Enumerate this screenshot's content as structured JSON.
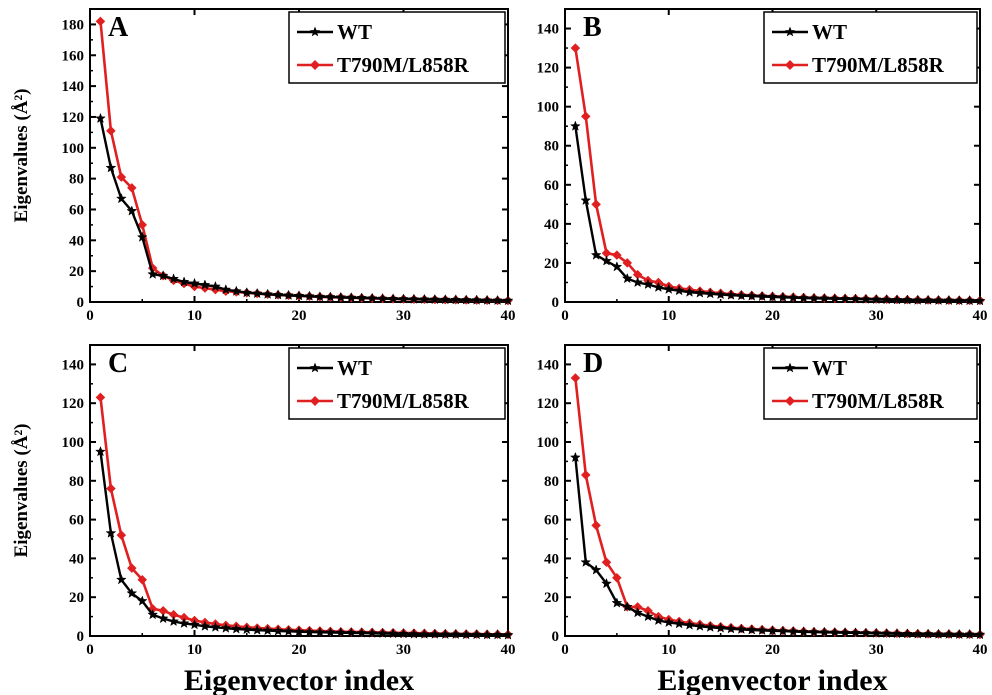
{
  "chart_data": [
    {
      "type": "line",
      "panel_label": "A",
      "xlim": [
        0,
        40
      ],
      "ylim": [
        0,
        190
      ],
      "xticks": [
        0,
        10,
        20,
        30,
        40
      ],
      "yticks": [
        0,
        20,
        40,
        60,
        80,
        100,
        120,
        140,
        160,
        180
      ],
      "ylabel": "Eigenvalues (Å²)",
      "xlabel": "",
      "legend_position": "top-right",
      "series": [
        {
          "name": "WT",
          "color": "#000000",
          "marker": "star",
          "x": [
            1,
            2,
            3,
            4,
            5,
            6,
            7,
            8,
            9,
            10,
            11,
            12,
            13,
            14,
            15,
            16,
            17,
            18,
            19,
            20,
            21,
            22,
            23,
            24,
            25,
            26,
            27,
            28,
            29,
            30,
            31,
            32,
            33,
            34,
            35,
            36,
            37,
            38,
            39,
            40
          ],
          "y": [
            119,
            87,
            67,
            59,
            42,
            18,
            17,
            15,
            13,
            12,
            11,
            10,
            8,
            7,
            6,
            5.5,
            5,
            4.6,
            4.3,
            4,
            3.7,
            3.4,
            3.2,
            3,
            2.8,
            2.6,
            2.4,
            2.2,
            2,
            1.9,
            1.8,
            1.7,
            1.6,
            1.5,
            1.4,
            1.3,
            1.2,
            1.1,
            1,
            0.9
          ]
        },
        {
          "name": "T790M/L858R",
          "color": "#e02020",
          "marker": "diamond",
          "x": [
            1,
            2,
            3,
            4,
            5,
            6,
            7,
            8,
            9,
            10,
            11,
            12,
            13,
            14,
            15,
            16,
            17,
            18,
            19,
            20,
            21,
            22,
            23,
            24,
            25,
            26,
            27,
            28,
            29,
            30,
            31,
            32,
            33,
            34,
            35,
            36,
            37,
            38,
            39,
            40
          ],
          "y": [
            182,
            111,
            81,
            74,
            50,
            22,
            17,
            14,
            12,
            10,
            9,
            8,
            7,
            6.5,
            6,
            5.5,
            5,
            4.6,
            4.3,
            4,
            3.7,
            3.4,
            3.2,
            3,
            2.8,
            2.6,
            2.4,
            2.2,
            2,
            1.9,
            1.8,
            1.7,
            1.6,
            1.5,
            1.4,
            1.3,
            1.2,
            1.1,
            1,
            0.9
          ]
        }
      ]
    },
    {
      "type": "line",
      "panel_label": "B",
      "xlim": [
        0,
        40
      ],
      "ylim": [
        0,
        150
      ],
      "xticks": [
        0,
        10,
        20,
        30,
        40
      ],
      "yticks": [
        0,
        20,
        40,
        60,
        80,
        100,
        120,
        140
      ],
      "ylabel": "",
      "xlabel": "",
      "legend_position": "top-right",
      "series": [
        {
          "name": "WT",
          "color": "#000000",
          "marker": "star",
          "x": [
            1,
            2,
            3,
            4,
            5,
            6,
            7,
            8,
            9,
            10,
            11,
            12,
            13,
            14,
            15,
            16,
            17,
            18,
            19,
            20,
            21,
            22,
            23,
            24,
            25,
            26,
            27,
            28,
            29,
            30,
            31,
            32,
            33,
            34,
            35,
            36,
            37,
            38,
            39,
            40
          ],
          "y": [
            90,
            52,
            24,
            21,
            18,
            12,
            10,
            9,
            7.5,
            6.5,
            5.8,
            5,
            4.6,
            4.2,
            3.8,
            3.5,
            3.2,
            3,
            2.8,
            2.6,
            2.4,
            2.2,
            2,
            1.9,
            1.8,
            1.7,
            1.6,
            1.5,
            1.4,
            1.3,
            1.2,
            1.1,
            1,
            0.9,
            0.9,
            0.8,
            0.8,
            0.7,
            0.7,
            0.6
          ]
        },
        {
          "name": "T790M/L858R",
          "color": "#e02020",
          "marker": "diamond",
          "x": [
            1,
            2,
            3,
            4,
            5,
            6,
            7,
            8,
            9,
            10,
            11,
            12,
            13,
            14,
            15,
            16,
            17,
            18,
            19,
            20,
            21,
            22,
            23,
            24,
            25,
            26,
            27,
            28,
            29,
            30,
            31,
            32,
            33,
            34,
            35,
            36,
            37,
            38,
            39,
            40
          ],
          "y": [
            130,
            95,
            50,
            25,
            24,
            20,
            14,
            11,
            10,
            8,
            7,
            6.3,
            5.6,
            5,
            4.5,
            4,
            3.7,
            3.4,
            3.1,
            2.9,
            2.7,
            2.5,
            2.3,
            2.1,
            2,
            1.9,
            1.8,
            1.7,
            1.6,
            1.5,
            1.4,
            1.3,
            1.2,
            1.1,
            1,
            1,
            0.9,
            0.9,
            0.8,
            0.8
          ]
        }
      ]
    },
    {
      "type": "line",
      "panel_label": "C",
      "xlim": [
        0,
        40
      ],
      "ylim": [
        0,
        150
      ],
      "xticks": [
        0,
        10,
        20,
        30,
        40
      ],
      "yticks": [
        0,
        20,
        40,
        60,
        80,
        100,
        120,
        140
      ],
      "ylabel": "Eigenvalues (Å²)",
      "xlabel": "Eigenvector index",
      "legend_position": "top-right",
      "series": [
        {
          "name": "WT",
          "color": "#000000",
          "marker": "star",
          "x": [
            1,
            2,
            3,
            4,
            5,
            6,
            7,
            8,
            9,
            10,
            11,
            12,
            13,
            14,
            15,
            16,
            17,
            18,
            19,
            20,
            21,
            22,
            23,
            24,
            25,
            26,
            27,
            28,
            29,
            30,
            31,
            32,
            33,
            34,
            35,
            36,
            37,
            38,
            39,
            40
          ],
          "y": [
            95,
            53,
            29,
            22,
            18,
            11,
            9,
            7.5,
            6.5,
            5.8,
            5,
            4.5,
            4,
            3.6,
            3.3,
            3,
            2.8,
            2.6,
            2.4,
            2.2,
            2,
            1.9,
            1.8,
            1.7,
            1.6,
            1.5,
            1.4,
            1.3,
            1.2,
            1.1,
            1,
            0.9,
            0.9,
            0.8,
            0.8,
            0.7,
            0.7,
            0.6,
            0.6,
            0.5
          ]
        },
        {
          "name": "T790M/L858R",
          "color": "#e02020",
          "marker": "diamond",
          "x": [
            1,
            2,
            3,
            4,
            5,
            6,
            7,
            8,
            9,
            10,
            11,
            12,
            13,
            14,
            15,
            16,
            17,
            18,
            19,
            20,
            21,
            22,
            23,
            24,
            25,
            26,
            27,
            28,
            29,
            30,
            31,
            32,
            33,
            34,
            35,
            36,
            37,
            38,
            39,
            40
          ],
          "y": [
            123,
            76,
            52,
            35,
            29,
            14,
            13,
            11,
            9.5,
            8,
            7,
            6.2,
            5.5,
            5,
            4.5,
            4.1,
            3.8,
            3.5,
            3.2,
            3,
            2.8,
            2.6,
            2.4,
            2.2,
            2.1,
            2,
            1.9,
            1.8,
            1.7,
            1.6,
            1.5,
            1.4,
            1.3,
            1.2,
            1.1,
            1,
            1,
            0.9,
            0.9,
            0.8
          ]
        }
      ]
    },
    {
      "type": "line",
      "panel_label": "D",
      "xlim": [
        0,
        40
      ],
      "ylim": [
        0,
        150
      ],
      "xticks": [
        0,
        10,
        20,
        30,
        40
      ],
      "yticks": [
        0,
        20,
        40,
        60,
        80,
        100,
        120,
        140
      ],
      "ylabel": "",
      "xlabel": "Eigenvector index",
      "legend_position": "top-right",
      "series": [
        {
          "name": "WT",
          "color": "#000000",
          "marker": "star",
          "x": [
            1,
            2,
            3,
            4,
            5,
            6,
            7,
            8,
            9,
            10,
            11,
            12,
            13,
            14,
            15,
            16,
            17,
            18,
            19,
            20,
            21,
            22,
            23,
            24,
            25,
            26,
            27,
            28,
            29,
            30,
            31,
            32,
            33,
            34,
            35,
            36,
            37,
            38,
            39,
            40
          ],
          "y": [
            92,
            38,
            34,
            27,
            17,
            15,
            12,
            10,
            8,
            7,
            6.3,
            5.6,
            5,
            4.5,
            4.1,
            3.7,
            3.4,
            3.1,
            2.9,
            2.7,
            2.5,
            2.3,
            2.1,
            2,
            1.9,
            1.8,
            1.7,
            1.6,
            1.5,
            1.4,
            1.3,
            1.2,
            1.1,
            1,
            1,
            0.9,
            0.9,
            0.8,
            0.8,
            0.7
          ]
        },
        {
          "name": "T790M/L858R",
          "color": "#e02020",
          "marker": "diamond",
          "x": [
            1,
            2,
            3,
            4,
            5,
            6,
            7,
            8,
            9,
            10,
            11,
            12,
            13,
            14,
            15,
            16,
            17,
            18,
            19,
            20,
            21,
            22,
            23,
            24,
            25,
            26,
            27,
            28,
            29,
            30,
            31,
            32,
            33,
            34,
            35,
            36,
            37,
            38,
            39,
            40
          ],
          "y": [
            133,
            83,
            57,
            38,
            30,
            15,
            15,
            13,
            10,
            8.5,
            7.5,
            6.7,
            6,
            5.3,
            4.8,
            4.3,
            3.9,
            3.6,
            3.3,
            3,
            2.8,
            2.6,
            2.4,
            2.2,
            2.1,
            2,
            1.9,
            1.8,
            1.7,
            1.6,
            1.5,
            1.4,
            1.3,
            1.2,
            1.1,
            1,
            1,
            0.9,
            0.9,
            0.8
          ]
        }
      ]
    }
  ]
}
